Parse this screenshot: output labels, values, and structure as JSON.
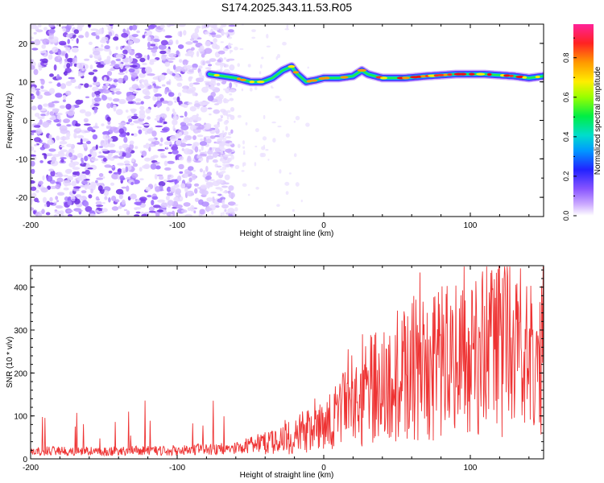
{
  "page_title": "S174.2025.343.11.53.R05",
  "chart_data": [
    {
      "type": "heatmap",
      "title": "S174.2025.343.11.53.R05",
      "xlabel": "Height of straight line (km)",
      "ylabel": "Frequency (Hz)",
      "xlim": [
        -200,
        150
      ],
      "ylim": [
        -25,
        25
      ],
      "xticks": [
        -200,
        -100,
        0,
        100
      ],
      "yticks": [
        -20,
        -10,
        0,
        10,
        20
      ],
      "colorbar": {
        "label": "Normalized spectral amplitude",
        "range": [
          0,
          0.97
        ],
        "ticks": [
          0.0,
          0.2,
          0.4,
          0.6,
          0.8
        ]
      },
      "noise_region_km": [
        -200,
        -70
      ],
      "signal_track": {
        "height_km": [
          -78,
          -60,
          -50,
          -42,
          -35,
          -28,
          -22,
          -18,
          -12,
          -5,
          0,
          10,
          20,
          26,
          30,
          40,
          55,
          70,
          90,
          110,
          130,
          140,
          150
        ],
        "frequency_hz": [
          12,
          11,
          10,
          10,
          11,
          13,
          14,
          12,
          10,
          10.5,
          11,
          11,
          11.5,
          13,
          12,
          11,
          11,
          11.5,
          12,
          12,
          11.5,
          11,
          11.5
        ]
      }
    },
    {
      "type": "line",
      "xlabel": "Height of straight line (km)",
      "ylabel": "SNR (10 * v/v)",
      "xlim": [
        -200,
        150
      ],
      "ylim": [
        0,
        450
      ],
      "xticks": [
        -200,
        -100,
        0,
        100
      ],
      "yticks": [
        0,
        100,
        200,
        300,
        400
      ],
      "series": [
        {
          "name": "SNR",
          "color": "#ee3333",
          "envelope_x": [
            -200,
            -150,
            -100,
            -60,
            -40,
            -20,
            0,
            20,
            40,
            60,
            80,
            100,
            120,
            140,
            150
          ],
          "envelope_y": [
            18,
            18,
            20,
            25,
            40,
            70,
            100,
            170,
            230,
            270,
            290,
            310,
            330,
            320,
            300
          ]
        }
      ]
    }
  ]
}
